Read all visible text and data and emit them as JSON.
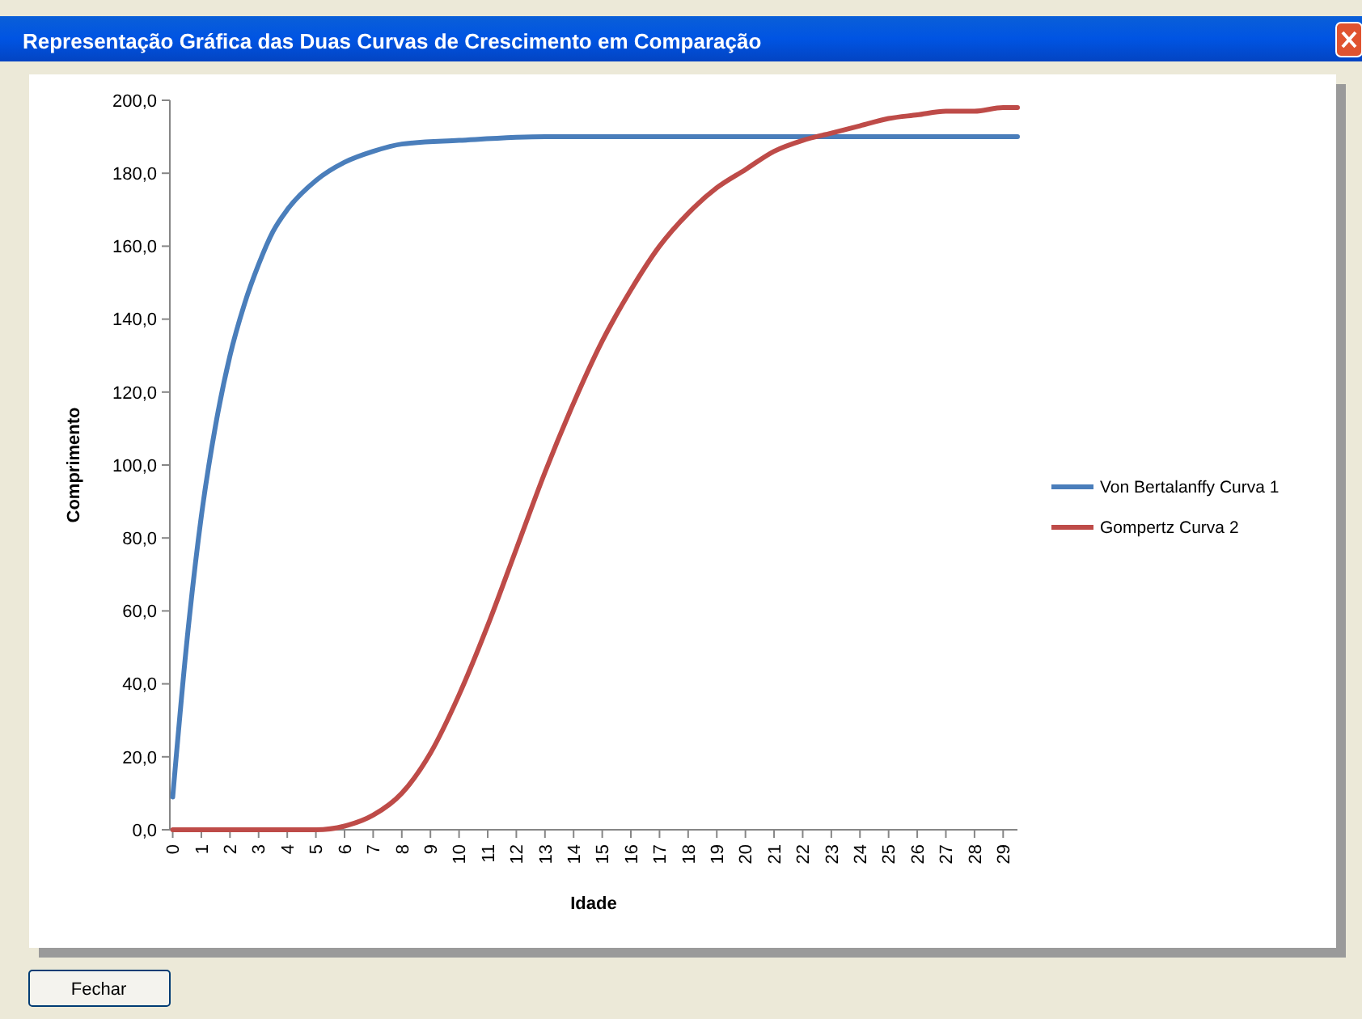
{
  "chart_data": {
    "type": "line",
    "title": "Representação Gráfica das Duas Curvas de Crescimento em Comparação",
    "xlabel": "Idade",
    "ylabel": "Comprimento",
    "annotations": [
      "Fechar"
    ],
    "legend": "right",
    "grid": false,
    "line_style": "solid",
    "xlim": [
      -0.1,
      29.5
    ],
    "xticks": [
      0,
      1,
      2,
      3,
      4,
      5,
      6,
      7,
      8,
      9,
      10,
      11,
      12,
      13,
      14,
      15,
      16,
      17,
      18,
      19,
      20,
      21,
      22,
      23,
      24,
      25,
      26,
      27,
      28,
      29
    ],
    "ylim": [
      0,
      200
    ],
    "yticks": [
      {
        "value": 0,
        "label": "0,0"
      },
      {
        "value": 20,
        "label": "20,0"
      },
      {
        "value": 40,
        "label": "40,0"
      },
      {
        "value": 60,
        "label": "60,0"
      },
      {
        "value": 80,
        "label": "80,0"
      },
      {
        "value": 100,
        "label": "100,0"
      },
      {
        "value": 120,
        "label": "120,0"
      },
      {
        "value": 140,
        "label": "140,0"
      },
      {
        "value": 160,
        "label": "160,0"
      },
      {
        "value": 180,
        "label": "180,0"
      },
      {
        "value": 200,
        "label": "200,0"
      }
    ],
    "series": [
      {
        "name": "Von Bertalanffy Curva 1",
        "color": "#4a7ebb",
        "x": [
          0,
          0.5,
          1,
          1.5,
          2,
          2.5,
          3,
          3.5,
          4,
          5,
          6,
          7,
          8,
          10,
          13,
          20,
          29.5
        ],
        "values": [
          9,
          52,
          86,
          111,
          130,
          144,
          155,
          164,
          170,
          178,
          183,
          186,
          188,
          189,
          190,
          190,
          190
        ]
      },
      {
        "name": "Gompertz Curva 2",
        "color": "#be4b48",
        "x": [
          0,
          4,
          5,
          6,
          7,
          8,
          9,
          10,
          11,
          12,
          13,
          14,
          15,
          16,
          17,
          18,
          19,
          20,
          21,
          22,
          23,
          24,
          25,
          26,
          27,
          28,
          29,
          29.5
        ],
        "values": [
          0,
          0,
          0,
          1,
          4,
          10,
          21,
          37,
          56,
          77,
          98,
          117,
          134,
          148,
          160,
          169,
          176,
          181,
          186,
          189,
          191,
          193,
          195,
          196,
          197,
          197,
          198,
          198
        ]
      }
    ]
  }
}
